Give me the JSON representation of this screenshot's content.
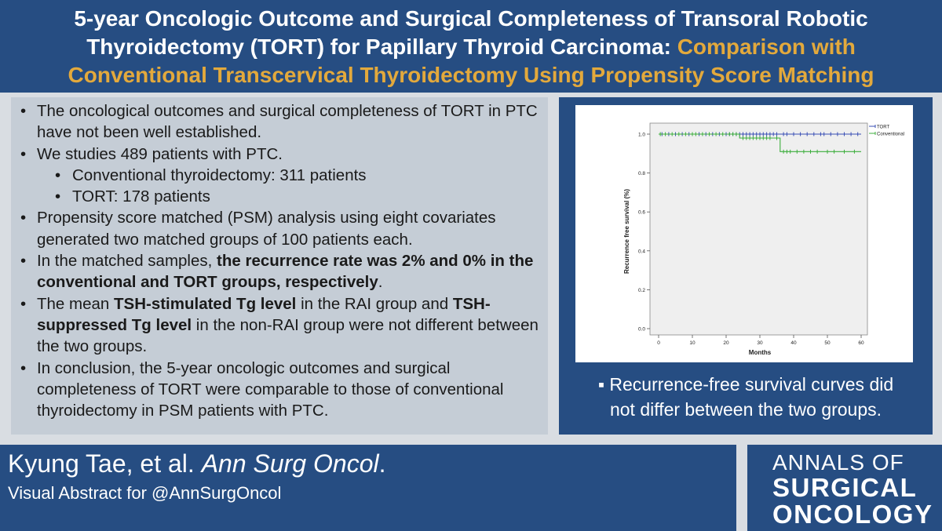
{
  "header": {
    "line1": "5-year Oncologic Outcome and Surgical Completeness of Transoral Robotic",
    "line2_a": "Thyroidectomy (TORT) for Papillary Thyroid Carcinoma: ",
    "line2_b": "Comparison with",
    "line3": "Conventional Transcervical Thyroidectomy Using Propensity Score Matching",
    "colors": {
      "background": "#264d82",
      "text": "#ffffff",
      "highlight": "#e3a93c"
    }
  },
  "bullets": {
    "b1": "The oncological outcomes and surgical completeness of TORT in PTC have not been well established.",
    "b2": "We studies 489 patients with PTC.",
    "b2_sub1": "Conventional thyroidectomy: 311 patients",
    "b2_sub2": "TORT: 178 patients",
    "b3": "Propensity score matched (PSM) analysis using eight covariates generated two matched groups of 100 patients each.",
    "b4_a": "In the matched samples, ",
    "b4_b": "the recurrence rate was 2% and 0% in the conventional and TORT groups, respectively",
    "b4_c": ".",
    "b5_a": "The mean ",
    "b5_b": "TSH-stimulated Tg level",
    "b5_c": " in the RAI group and ",
    "b5_d": "TSH-suppressed Tg level",
    "b5_e": " in the non-RAI group were not different between the two groups.",
    "b6": "In conclusion, the 5-year oncologic outcomes and surgical completeness of TORT were comparable to those of conventional thyroidectomy in PSM patients with PTC."
  },
  "caption": {
    "line1": "Recurrence-free survival curves did",
    "line2": "not differ between the two groups."
  },
  "footer": {
    "author": "Kyung Tae, et al. ",
    "journal": "Ann Surg Oncol",
    "period": ".",
    "subline": "Visual Abstract for @AnnSurgOncol",
    "logo_line1": "ANNALS OF",
    "logo_line2": "SURGICAL",
    "logo_line3": "ONCOLOGY"
  },
  "chart_data": {
    "type": "line",
    "xlabel": "Months",
    "ylabel": "Recurrence free survival (%)",
    "xlim": [
      0,
      60
    ],
    "ylim": [
      0,
      1.0
    ],
    "xticks": [
      0,
      10,
      20,
      30,
      40,
      50,
      60
    ],
    "yticks": [
      "0.0",
      "0.2",
      "0.4",
      "0.6",
      "0.8",
      "1.0"
    ],
    "legend_position": "top-right",
    "series": [
      {
        "name": "TORT",
        "color": "#3a4fb5",
        "steps": [
          [
            0,
            1.0
          ],
          [
            60,
            1.0
          ]
        ],
        "censor": [
          1,
          3,
          5,
          7,
          9,
          12,
          14,
          16,
          18,
          20,
          21,
          22,
          23,
          24,
          25,
          26,
          27,
          28,
          29,
          30,
          31,
          32,
          33,
          34,
          35,
          37,
          38,
          40,
          42,
          44,
          46,
          48,
          49,
          51,
          53,
          55,
          57,
          59
        ]
      },
      {
        "name": "Conventional",
        "color": "#3cae3c",
        "steps": [
          [
            0,
            1.0
          ],
          [
            24,
            1.0
          ],
          [
            24,
            0.98
          ],
          [
            36,
            0.98
          ],
          [
            36,
            0.91
          ],
          [
            60,
            0.91
          ]
        ],
        "censor": [
          0.5,
          2,
          4,
          6,
          8,
          10,
          11,
          13,
          15,
          17,
          19,
          21,
          22,
          23,
          25,
          26,
          27,
          28,
          29,
          30,
          31,
          32,
          33,
          35,
          37,
          38,
          39,
          41,
          43,
          45,
          47,
          50,
          52,
          55,
          58
        ]
      }
    ]
  }
}
